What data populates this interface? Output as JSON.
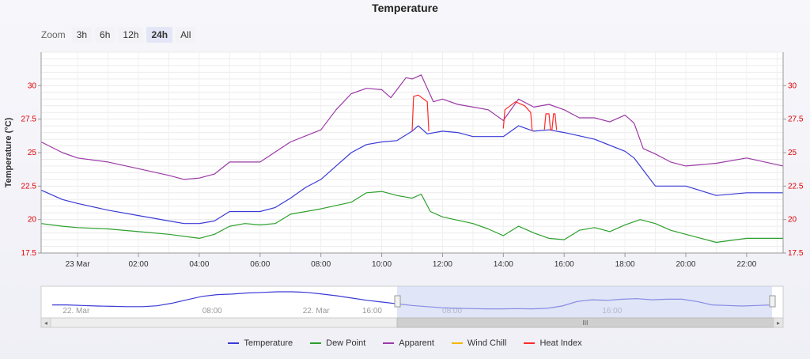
{
  "title": "Temperature",
  "zoom": {
    "label": "Zoom",
    "buttons": [
      "3h",
      "6h",
      "12h",
      "24h",
      "All"
    ],
    "active": "24h"
  },
  "colors": {
    "temperature": "#3a3ad6",
    "dew_point": "#2ca02c",
    "apparent": "#9b3aa6",
    "wind_chill": "#f5b800",
    "heat_index": "#ff2a2a",
    "axis_tick": "#e00000",
    "navigator_fill": "#c6d0f0"
  },
  "navigator": {
    "labels": [
      "22. Mar",
      "08:00",
      "16:00",
      "22. Mar",
      "08:00",
      "16:00"
    ],
    "scroll_glyph": "III"
  },
  "chart_data": {
    "type": "line",
    "title": "Temperature",
    "ylabel": "Temperature (°C)",
    "ylim": [
      17.5,
      32.5
    ],
    "yticks": [
      "17.5",
      "20",
      "22.5",
      "25",
      "27.5",
      "30"
    ],
    "xlim": [
      -1.2,
      23.2
    ],
    "xticks": [
      "23 Mar",
      "02:00",
      "04:00",
      "06:00",
      "08:00",
      "10:00",
      "12:00",
      "14:00",
      "16:00",
      "18:00",
      "20:00",
      "22:00"
    ],
    "grid": true,
    "legend_position": "bottom",
    "series": [
      {
        "name": "Temperature",
        "x": [
          -1.2,
          -0.5,
          0,
          1,
          2,
          3,
          3.5,
          4,
          4.5,
          5,
          6,
          6.5,
          7,
          7.5,
          8,
          8.5,
          9,
          9.5,
          10,
          10.5,
          11,
          11.2,
          11.5,
          12,
          12.5,
          13,
          14,
          14.5,
          15,
          15.5,
          16,
          17,
          18,
          18.3,
          18.7,
          19,
          20,
          21,
          22,
          23.2
        ],
        "y": [
          22.2,
          21.5,
          21.2,
          20.7,
          20.3,
          19.9,
          19.7,
          19.7,
          19.9,
          20.6,
          20.6,
          20.9,
          21.6,
          22.4,
          23.0,
          24.0,
          25.0,
          25.6,
          25.8,
          25.9,
          26.6,
          27.0,
          26.4,
          26.6,
          26.5,
          26.2,
          26.2,
          27.0,
          26.6,
          26.7,
          26.5,
          26.0,
          25.1,
          24.6,
          23.4,
          22.5,
          22.5,
          21.8,
          22.0,
          22.0
        ]
      },
      {
        "name": "Dew Point",
        "x": [
          -1.2,
          -0.5,
          0,
          1,
          2,
          3,
          4,
          4.5,
          5,
          5.5,
          6,
          6.5,
          7,
          8,
          9,
          9.5,
          10,
          10.5,
          11,
          11.3,
          11.6,
          12,
          13,
          13.5,
          14,
          14.5,
          15,
          15.5,
          16,
          16.5,
          17,
          17.5,
          18,
          18.5,
          19,
          19.5,
          20,
          20.5,
          21,
          22,
          23.2
        ],
        "y": [
          19.7,
          19.5,
          19.4,
          19.3,
          19.1,
          18.9,
          18.6,
          18.9,
          19.5,
          19.7,
          19.6,
          19.7,
          20.4,
          20.8,
          21.3,
          22.0,
          22.1,
          21.8,
          21.6,
          21.9,
          20.6,
          20.2,
          19.7,
          19.3,
          18.8,
          19.5,
          19.0,
          18.6,
          18.5,
          19.2,
          19.4,
          19.1,
          19.6,
          20.0,
          19.7,
          19.2,
          18.9,
          18.6,
          18.3,
          18.6,
          18.6
        ]
      },
      {
        "name": "Apparent",
        "x": [
          -1.2,
          -0.5,
          0,
          1,
          2,
          3,
          3.5,
          4,
          4.5,
          5,
          5.5,
          6,
          7,
          8,
          8.5,
          9,
          9.5,
          10,
          10.3,
          10.8,
          11,
          11.3,
          11.7,
          12,
          12.5,
          13,
          13.5,
          14,
          14.5,
          15,
          15.5,
          16,
          16.5,
          17,
          17.5,
          18,
          18.3,
          18.6,
          19,
          19.5,
          20,
          21,
          22,
          23.2
        ],
        "y": [
          25.8,
          25.0,
          24.6,
          24.3,
          23.8,
          23.3,
          23.0,
          23.1,
          23.4,
          24.3,
          24.3,
          24.3,
          25.8,
          26.7,
          28.2,
          29.4,
          29.8,
          29.7,
          29.1,
          30.6,
          30.5,
          30.8,
          28.8,
          29.0,
          28.6,
          28.4,
          28.2,
          27.4,
          29.0,
          28.4,
          28.6,
          28.2,
          27.6,
          27.6,
          27.3,
          27.8,
          27.2,
          25.3,
          24.9,
          24.3,
          24.0,
          24.2,
          24.6,
          24.0
        ]
      },
      {
        "name": "Wind Chill",
        "x": [],
        "y": []
      },
      {
        "name": "Heat Index",
        "segments": [
          {
            "x": [
              11.0,
              11.05,
              11.2,
              11.5,
              11.55
            ],
            "y": [
              26.6,
              29.2,
              29.3,
              28.8,
              26.6
            ]
          },
          {
            "x": [
              14.0,
              14.05,
              14.4,
              14.7,
              14.9,
              14.95
            ],
            "y": [
              26.8,
              28.2,
              28.8,
              28.5,
              28.0,
              26.6
            ]
          },
          {
            "x": [
              15.35,
              15.4,
              15.5,
              15.55,
              15.6,
              15.65,
              15.7,
              15.75
            ],
            "y": [
              26.7,
              27.9,
              27.9,
              26.7,
              26.7,
              27.9,
              27.9,
              26.7
            ]
          }
        ]
      }
    ],
    "navigator": {
      "x": [
        0,
        0.5,
        1,
        1.5,
        2,
        2.5,
        3,
        3.5,
        4,
        4.5,
        5,
        5.5,
        6,
        6.5,
        7,
        7.5,
        8,
        8.5,
        9,
        9.5,
        10,
        10.5,
        11,
        11.5,
        12,
        12.5,
        13,
        13.5,
        14,
        14.5,
        15,
        15.5,
        16,
        16.5,
        17,
        17.5,
        18,
        18.5,
        19,
        19.5,
        20,
        20.5,
        21,
        21.5,
        22,
        22.5,
        23,
        23.5,
        24
      ],
      "y": [
        0.4,
        0.4,
        0.38,
        0.36,
        0.35,
        0.34,
        0.34,
        0.37,
        0.46,
        0.58,
        0.7,
        0.76,
        0.78,
        0.82,
        0.84,
        0.86,
        0.86,
        0.84,
        0.78,
        0.72,
        0.64,
        0.56,
        0.5,
        0.44,
        0.38,
        0.34,
        0.3,
        0.28,
        0.27,
        0.26,
        0.26,
        0.27,
        0.26,
        0.28,
        0.36,
        0.52,
        0.58,
        0.56,
        0.6,
        0.62,
        0.58,
        0.6,
        0.6,
        0.52,
        0.4,
        0.38,
        0.36,
        0.38,
        0.4
      ],
      "selection": [
        11.5,
        24
      ]
    }
  }
}
